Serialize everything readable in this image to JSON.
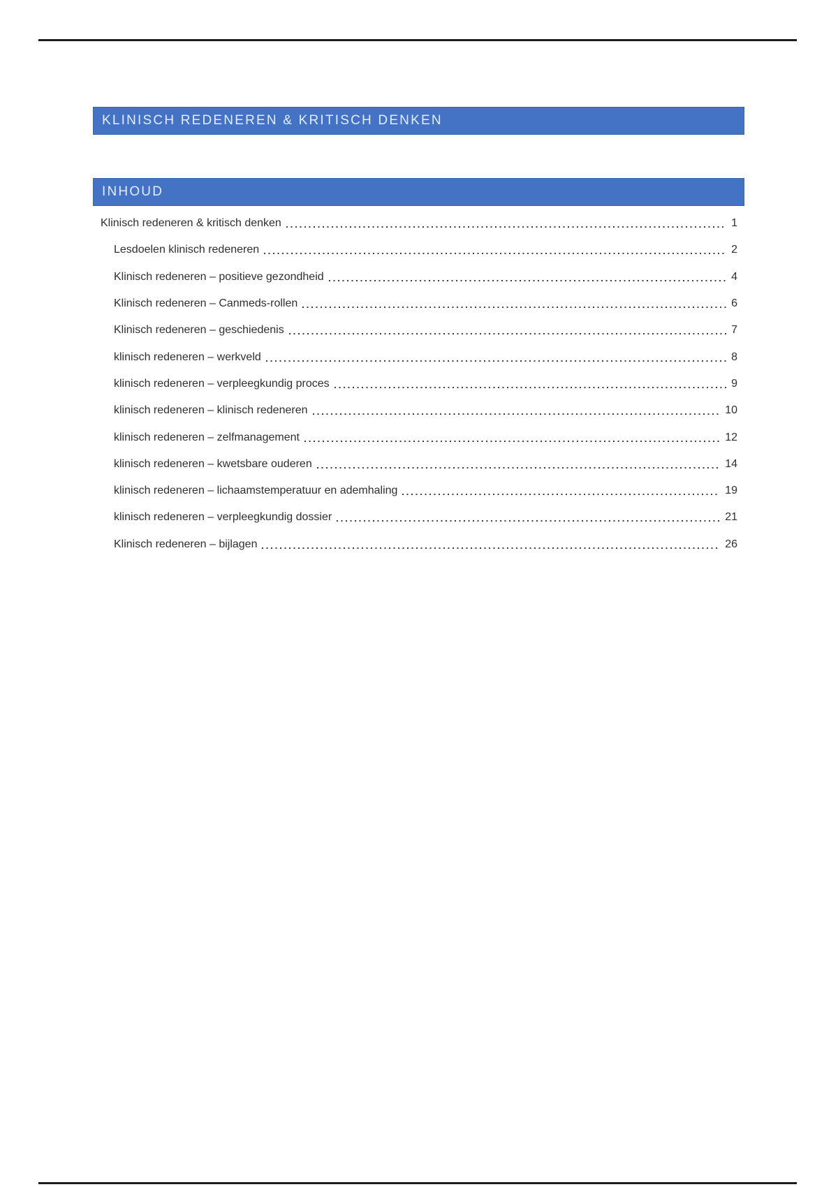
{
  "document": {
    "title_bar": "KLINISCH REDENEREN & KRITISCH DENKEN",
    "contents_bar": "INHOUD"
  },
  "colors": {
    "heading_bar_background": "#4472C4",
    "heading_bar_text": "#E4EDFA",
    "body_text": "#2F2F2F",
    "rule_line": "#1C1C1C",
    "dot_leader": "#3F3F3F"
  },
  "toc": {
    "entries": [
      {
        "label": "Klinisch redeneren & kritisch denken",
        "page": "1",
        "level": 1
      },
      {
        "label": "Lesdoelen klinisch redeneren",
        "page": "2",
        "level": 2
      },
      {
        "label": "Klinisch redeneren – positieve gezondheid",
        "page": "4",
        "level": 2
      },
      {
        "label": "Klinisch redeneren – Canmeds-rollen",
        "page": "6",
        "level": 2
      },
      {
        "label": "Klinisch redeneren – geschiedenis",
        "page": "7",
        "level": 2
      },
      {
        "label": "klinisch redeneren – werkveld",
        "page": "8",
        "level": 2
      },
      {
        "label": "klinisch redeneren – verpleegkundig proces",
        "page": "9",
        "level": 2
      },
      {
        "label": "klinisch redeneren – klinisch redeneren",
        "page": "10",
        "level": 2
      },
      {
        "label": "klinisch redeneren – zelfmanagement",
        "page": "12",
        "level": 2
      },
      {
        "label": "klinisch redeneren – kwetsbare ouderen",
        "page": "14",
        "level": 2
      },
      {
        "label": "klinisch redeneren – lichaamstemperatuur en ademhaling",
        "page": "19",
        "level": 2
      },
      {
        "label": "klinisch redeneren – verpleegkundig dossier",
        "page": "21",
        "level": 2
      },
      {
        "label": "Klinisch redeneren – bijlagen",
        "page": "26",
        "level": 2
      }
    ]
  }
}
